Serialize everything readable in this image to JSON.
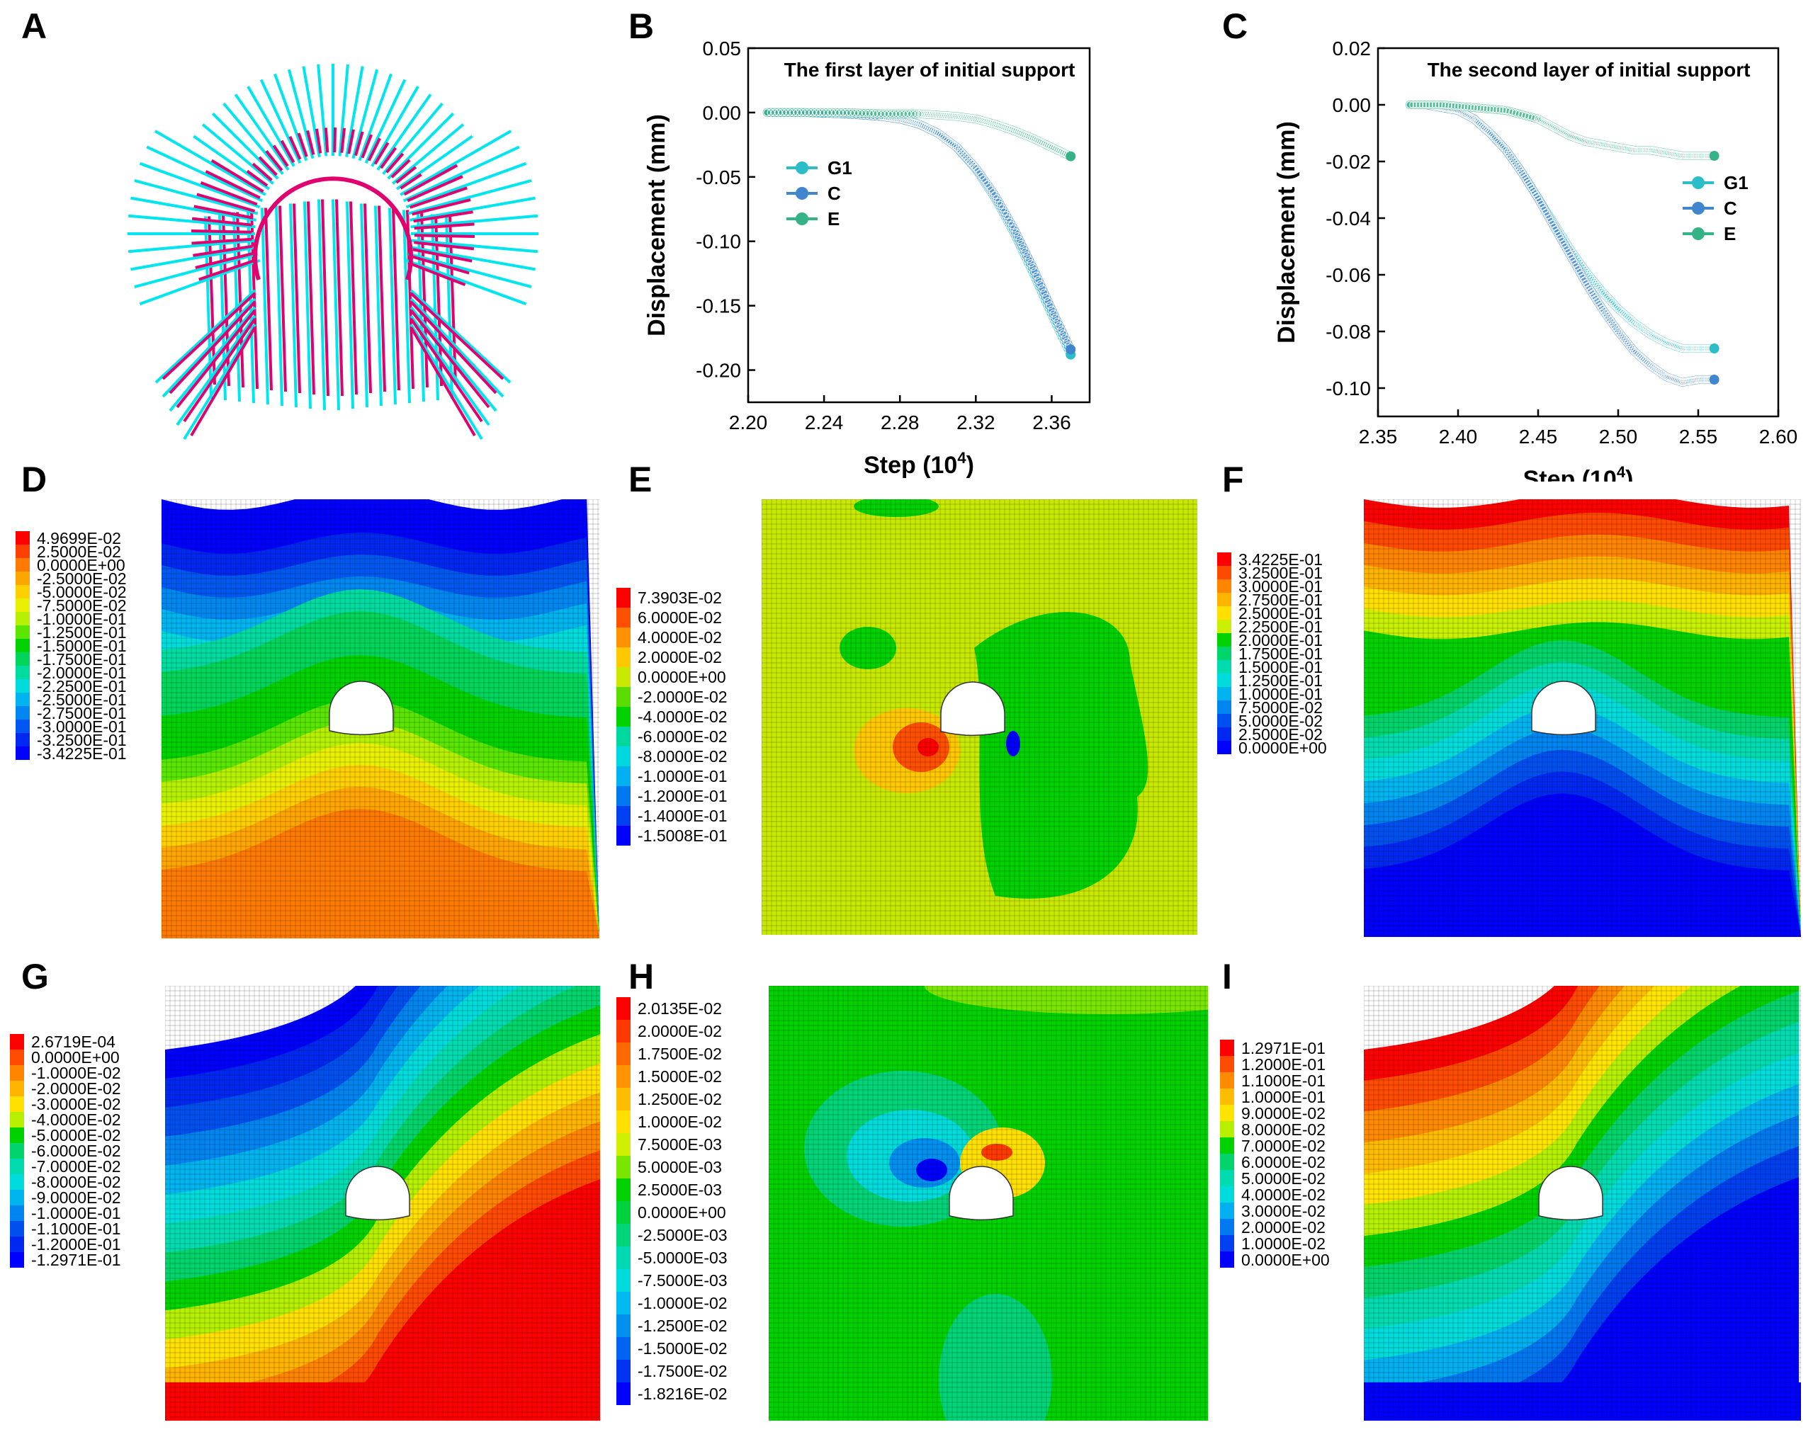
{
  "figure": {
    "panels": [
      "A",
      "B",
      "C",
      "D",
      "E",
      "F",
      "G",
      "H",
      "I"
    ]
  },
  "chart_data": [
    {
      "id": "B",
      "type": "line",
      "title": "The first layer of initial support",
      "xlabel": "Step",
      "xlabel_unit_base": "10",
      "xlabel_unit_exp": "4",
      "ylabel": "Displacement (mm)",
      "xlim": [
        2.2,
        2.38
      ],
      "ylim": [
        -0.225,
        0.05
      ],
      "xticks": [
        "2.20",
        "2.24",
        "2.28",
        "2.32",
        "2.36"
      ],
      "xtick_values": [
        2.2,
        2.24,
        2.28,
        2.32,
        2.36
      ],
      "yticks": [
        "0.05",
        "0.00",
        "-0.05",
        "-0.10",
        "-0.15",
        "-0.20"
      ],
      "ytick_values": [
        0.05,
        0.0,
        -0.05,
        -0.1,
        -0.15,
        -0.2
      ],
      "legend_position": "left",
      "series": [
        {
          "name": "G1",
          "color": "#2bbdc8",
          "x": [
            2.21,
            2.23,
            2.25,
            2.27,
            2.28,
            2.29,
            2.3,
            2.31,
            2.32,
            2.33,
            2.34,
            2.35,
            2.36,
            2.37
          ],
          "values": [
            0.0,
            0.0,
            -0.001,
            -0.003,
            -0.005,
            -0.009,
            -0.016,
            -0.027,
            -0.044,
            -0.066,
            -0.093,
            -0.124,
            -0.157,
            -0.188
          ]
        },
        {
          "name": "C",
          "color": "#3f86cf",
          "x": [
            2.21,
            2.23,
            2.25,
            2.27,
            2.28,
            2.29,
            2.3,
            2.31,
            2.32,
            2.33,
            2.34,
            2.35,
            2.36,
            2.37
          ],
          "values": [
            0.0,
            0.0,
            -0.001,
            -0.003,
            -0.005,
            -0.009,
            -0.016,
            -0.027,
            -0.043,
            -0.064,
            -0.09,
            -0.12,
            -0.153,
            -0.184
          ]
        },
        {
          "name": "E",
          "color": "#36b386",
          "x": [
            2.21,
            2.23,
            2.25,
            2.27,
            2.29,
            2.3,
            2.31,
            2.32,
            2.33,
            2.34,
            2.35,
            2.36,
            2.37
          ],
          "values": [
            0.0,
            0.0,
            0.0,
            -0.001,
            -0.001,
            -0.002,
            -0.003,
            -0.005,
            -0.009,
            -0.014,
            -0.02,
            -0.027,
            -0.034
          ]
        }
      ]
    },
    {
      "id": "C",
      "type": "line",
      "title": "The second layer of initial support",
      "xlabel": "Step",
      "xlabel_unit_base": "10",
      "xlabel_unit_exp": "4",
      "ylabel": "Displacement (mm)",
      "xlim": [
        2.35,
        2.6
      ],
      "ylim": [
        -0.11,
        0.02
      ],
      "xticks": [
        "2.35",
        "2.40",
        "2.45",
        "2.50",
        "2.55",
        "2.60"
      ],
      "xtick_values": [
        2.35,
        2.4,
        2.45,
        2.5,
        2.55,
        2.6
      ],
      "yticks": [
        "0.02",
        "0.00",
        "-0.02",
        "-0.04",
        "-0.06",
        "-0.08",
        "-0.10"
      ],
      "ytick_values": [
        0.02,
        0.0,
        -0.02,
        -0.04,
        -0.06,
        -0.08,
        -0.1
      ],
      "legend_position": "right",
      "series": [
        {
          "name": "G1",
          "color": "#2bbdc8",
          "x": [
            2.37,
            2.38,
            2.39,
            2.4,
            2.41,
            2.42,
            2.43,
            2.44,
            2.45,
            2.46,
            2.47,
            2.48,
            2.49,
            2.5,
            2.51,
            2.52,
            2.53,
            2.54,
            2.55,
            2.56
          ],
          "values": [
            0.0,
            0.0,
            -0.001,
            -0.002,
            -0.005,
            -0.01,
            -0.016,
            -0.024,
            -0.033,
            -0.042,
            -0.051,
            -0.059,
            -0.066,
            -0.072,
            -0.077,
            -0.081,
            -0.084,
            -0.086,
            -0.086,
            -0.086
          ]
        },
        {
          "name": "C",
          "color": "#3f86cf",
          "x": [
            2.37,
            2.38,
            2.39,
            2.4,
            2.41,
            2.42,
            2.43,
            2.44,
            2.45,
            2.46,
            2.47,
            2.48,
            2.49,
            2.5,
            2.51,
            2.52,
            2.53,
            2.54,
            2.55,
            2.56
          ],
          "values": [
            0.0,
            0.0,
            -0.001,
            -0.002,
            -0.005,
            -0.01,
            -0.016,
            -0.024,
            -0.033,
            -0.043,
            -0.053,
            -0.063,
            -0.072,
            -0.08,
            -0.087,
            -0.092,
            -0.096,
            -0.098,
            -0.097,
            -0.097
          ]
        },
        {
          "name": "E",
          "color": "#36b386",
          "x": [
            2.37,
            2.39,
            2.41,
            2.43,
            2.45,
            2.46,
            2.47,
            2.48,
            2.49,
            2.5,
            2.51,
            2.52,
            2.53,
            2.54,
            2.55,
            2.56
          ],
          "values": [
            0.0,
            0.0,
            -0.001,
            -0.002,
            -0.005,
            -0.008,
            -0.011,
            -0.013,
            -0.014,
            -0.015,
            -0.016,
            -0.016,
            -0.017,
            -0.018,
            -0.018,
            -0.018
          ]
        }
      ]
    },
    {
      "id": "D",
      "type": "heatmap",
      "pattern": "hump-up",
      "legend_labels": [
        "4.9699E-02",
        "2.5000E-02",
        "0.0000E+00",
        "-2.5000E-02",
        "-5.0000E-02",
        "-7.5000E-02",
        "-1.0000E-01",
        "-1.2500E-01",
        "-1.5000E-01",
        "-1.7500E-01",
        "-2.0000E-01",
        "-2.2500E-01",
        "-2.5000E-01",
        "-2.7500E-01",
        "-3.0000E-01",
        "-3.2500E-01",
        "-3.4225E-01"
      ],
      "legend_colors": [
        "#ff0000",
        "#ff4000",
        "#ff7a00",
        "#ffa500",
        "#ffd000",
        "#e8f000",
        "#b6f000",
        "#5ae600",
        "#00d200",
        "#00d45a",
        "#00dca0",
        "#00dcdc",
        "#00b4f0",
        "#0088f0",
        "#0058f0",
        "#0028f0",
        "#0000ff"
      ],
      "field_levels": [
        16,
        16,
        15,
        14,
        13,
        12,
        11,
        10,
        9,
        9,
        8,
        8,
        7,
        6,
        5,
        4,
        3,
        2,
        2,
        2
      ]
    },
    {
      "id": "E",
      "type": "heatmap",
      "pattern": "blob",
      "legend_labels": [
        "7.3903E-02",
        "6.0000E-02",
        "4.0000E-02",
        "2.0000E-02",
        "0.0000E+00",
        "-2.0000E-02",
        "-4.0000E-02",
        "-6.0000E-02",
        "-8.0000E-02",
        "-1.0000E-01",
        "-1.2000E-01",
        "-1.4000E-01",
        "-1.5008E-01"
      ],
      "legend_colors": [
        "#ff0000",
        "#ff5000",
        "#ff9000",
        "#ffc800",
        "#c8e800",
        "#5adc00",
        "#00d200",
        "#00d8a0",
        "#00d8e0",
        "#00b0f0",
        "#0078f0",
        "#0040f0",
        "#0000ff"
      ]
    },
    {
      "id": "F",
      "type": "heatmap",
      "pattern": "hump-down",
      "legend_labels": [
        "3.4225E-01",
        "3.2500E-01",
        "3.0000E-01",
        "2.7500E-01",
        "2.5000E-01",
        "2.2500E-01",
        "2.0000E-01",
        "1.7500E-01",
        "1.5000E-01",
        "1.2500E-01",
        "1.0000E-01",
        "7.5000E-02",
        "5.0000E-02",
        "2.5000E-02",
        "0.0000E+00"
      ],
      "legend_colors": [
        "#ff0000",
        "#ff4a00",
        "#ff8400",
        "#ffb400",
        "#ffe000",
        "#c8f000",
        "#00d200",
        "#00d46a",
        "#00dcb0",
        "#00dcdc",
        "#00b4f0",
        "#0084f0",
        "#0050f0",
        "#0028f0",
        "#0000ff"
      ],
      "field_levels": [
        0,
        1,
        2,
        3,
        4,
        5,
        6,
        6,
        6,
        6,
        7,
        8,
        9,
        10,
        11,
        12,
        13,
        14,
        14,
        14
      ]
    },
    {
      "id": "G",
      "type": "heatmap",
      "pattern": "diagonal-up",
      "legend_labels": [
        "2.6719E-04",
        "0.0000E+00",
        "-1.0000E-02",
        "-2.0000E-02",
        "-3.0000E-02",
        "-4.0000E-02",
        "-5.0000E-02",
        "-6.0000E-02",
        "-7.0000E-02",
        "-8.0000E-02",
        "-9.0000E-02",
        "-1.0000E-01",
        "-1.1000E-01",
        "-1.2000E-01",
        "-1.2971E-01"
      ],
      "legend_colors": [
        "#ff0000",
        "#ff4a00",
        "#ff8400",
        "#ffb400",
        "#ffe000",
        "#b6f000",
        "#00d200",
        "#00d46a",
        "#00dcb0",
        "#00dcdc",
        "#00b4f0",
        "#0084f0",
        "#0050f0",
        "#0028f0",
        "#0000ff"
      ]
    },
    {
      "id": "H",
      "type": "heatmap",
      "pattern": "dipole",
      "legend_labels": [
        "2.0135E-02",
        "2.0000E-02",
        "1.7500E-02",
        "1.5000E-02",
        "1.2500E-02",
        "1.0000E-02",
        "7.5000E-03",
        "5.0000E-03",
        "2.5000E-03",
        "0.0000E+00",
        "-2.5000E-03",
        "-5.0000E-03",
        "-7.5000E-03",
        "-1.0000E-02",
        "-1.2500E-02",
        "-1.5000E-02",
        "-1.7500E-02",
        "-1.8216E-02"
      ],
      "legend_colors": [
        "#ff0000",
        "#ff3a00",
        "#ff6a00",
        "#ff9400",
        "#ffbc00",
        "#ffe000",
        "#d0f000",
        "#7ae600",
        "#00d200",
        "#00d23c",
        "#00d478",
        "#00dab4",
        "#00dcdc",
        "#00b8f0",
        "#0090f0",
        "#0064f0",
        "#0034f0",
        "#0000ff"
      ]
    },
    {
      "id": "I",
      "type": "heatmap",
      "pattern": "diagonal-down",
      "legend_labels": [
        "1.2971E-01",
        "1.2000E-01",
        "1.1000E-01",
        "1.0000E-01",
        "9.0000E-02",
        "8.0000E-02",
        "7.0000E-02",
        "6.0000E-02",
        "5.0000E-02",
        "4.0000E-02",
        "3.0000E-02",
        "2.0000E-02",
        "1.0000E-02",
        "0.0000E+00"
      ],
      "legend_colors": [
        "#ff0000",
        "#ff4c00",
        "#ff8a00",
        "#ffbc00",
        "#ffe400",
        "#b6f000",
        "#00d200",
        "#00d46a",
        "#00dcb0",
        "#00dcdc",
        "#00b0f0",
        "#0078f0",
        "#0040f0",
        "#0000ff"
      ]
    }
  ]
}
